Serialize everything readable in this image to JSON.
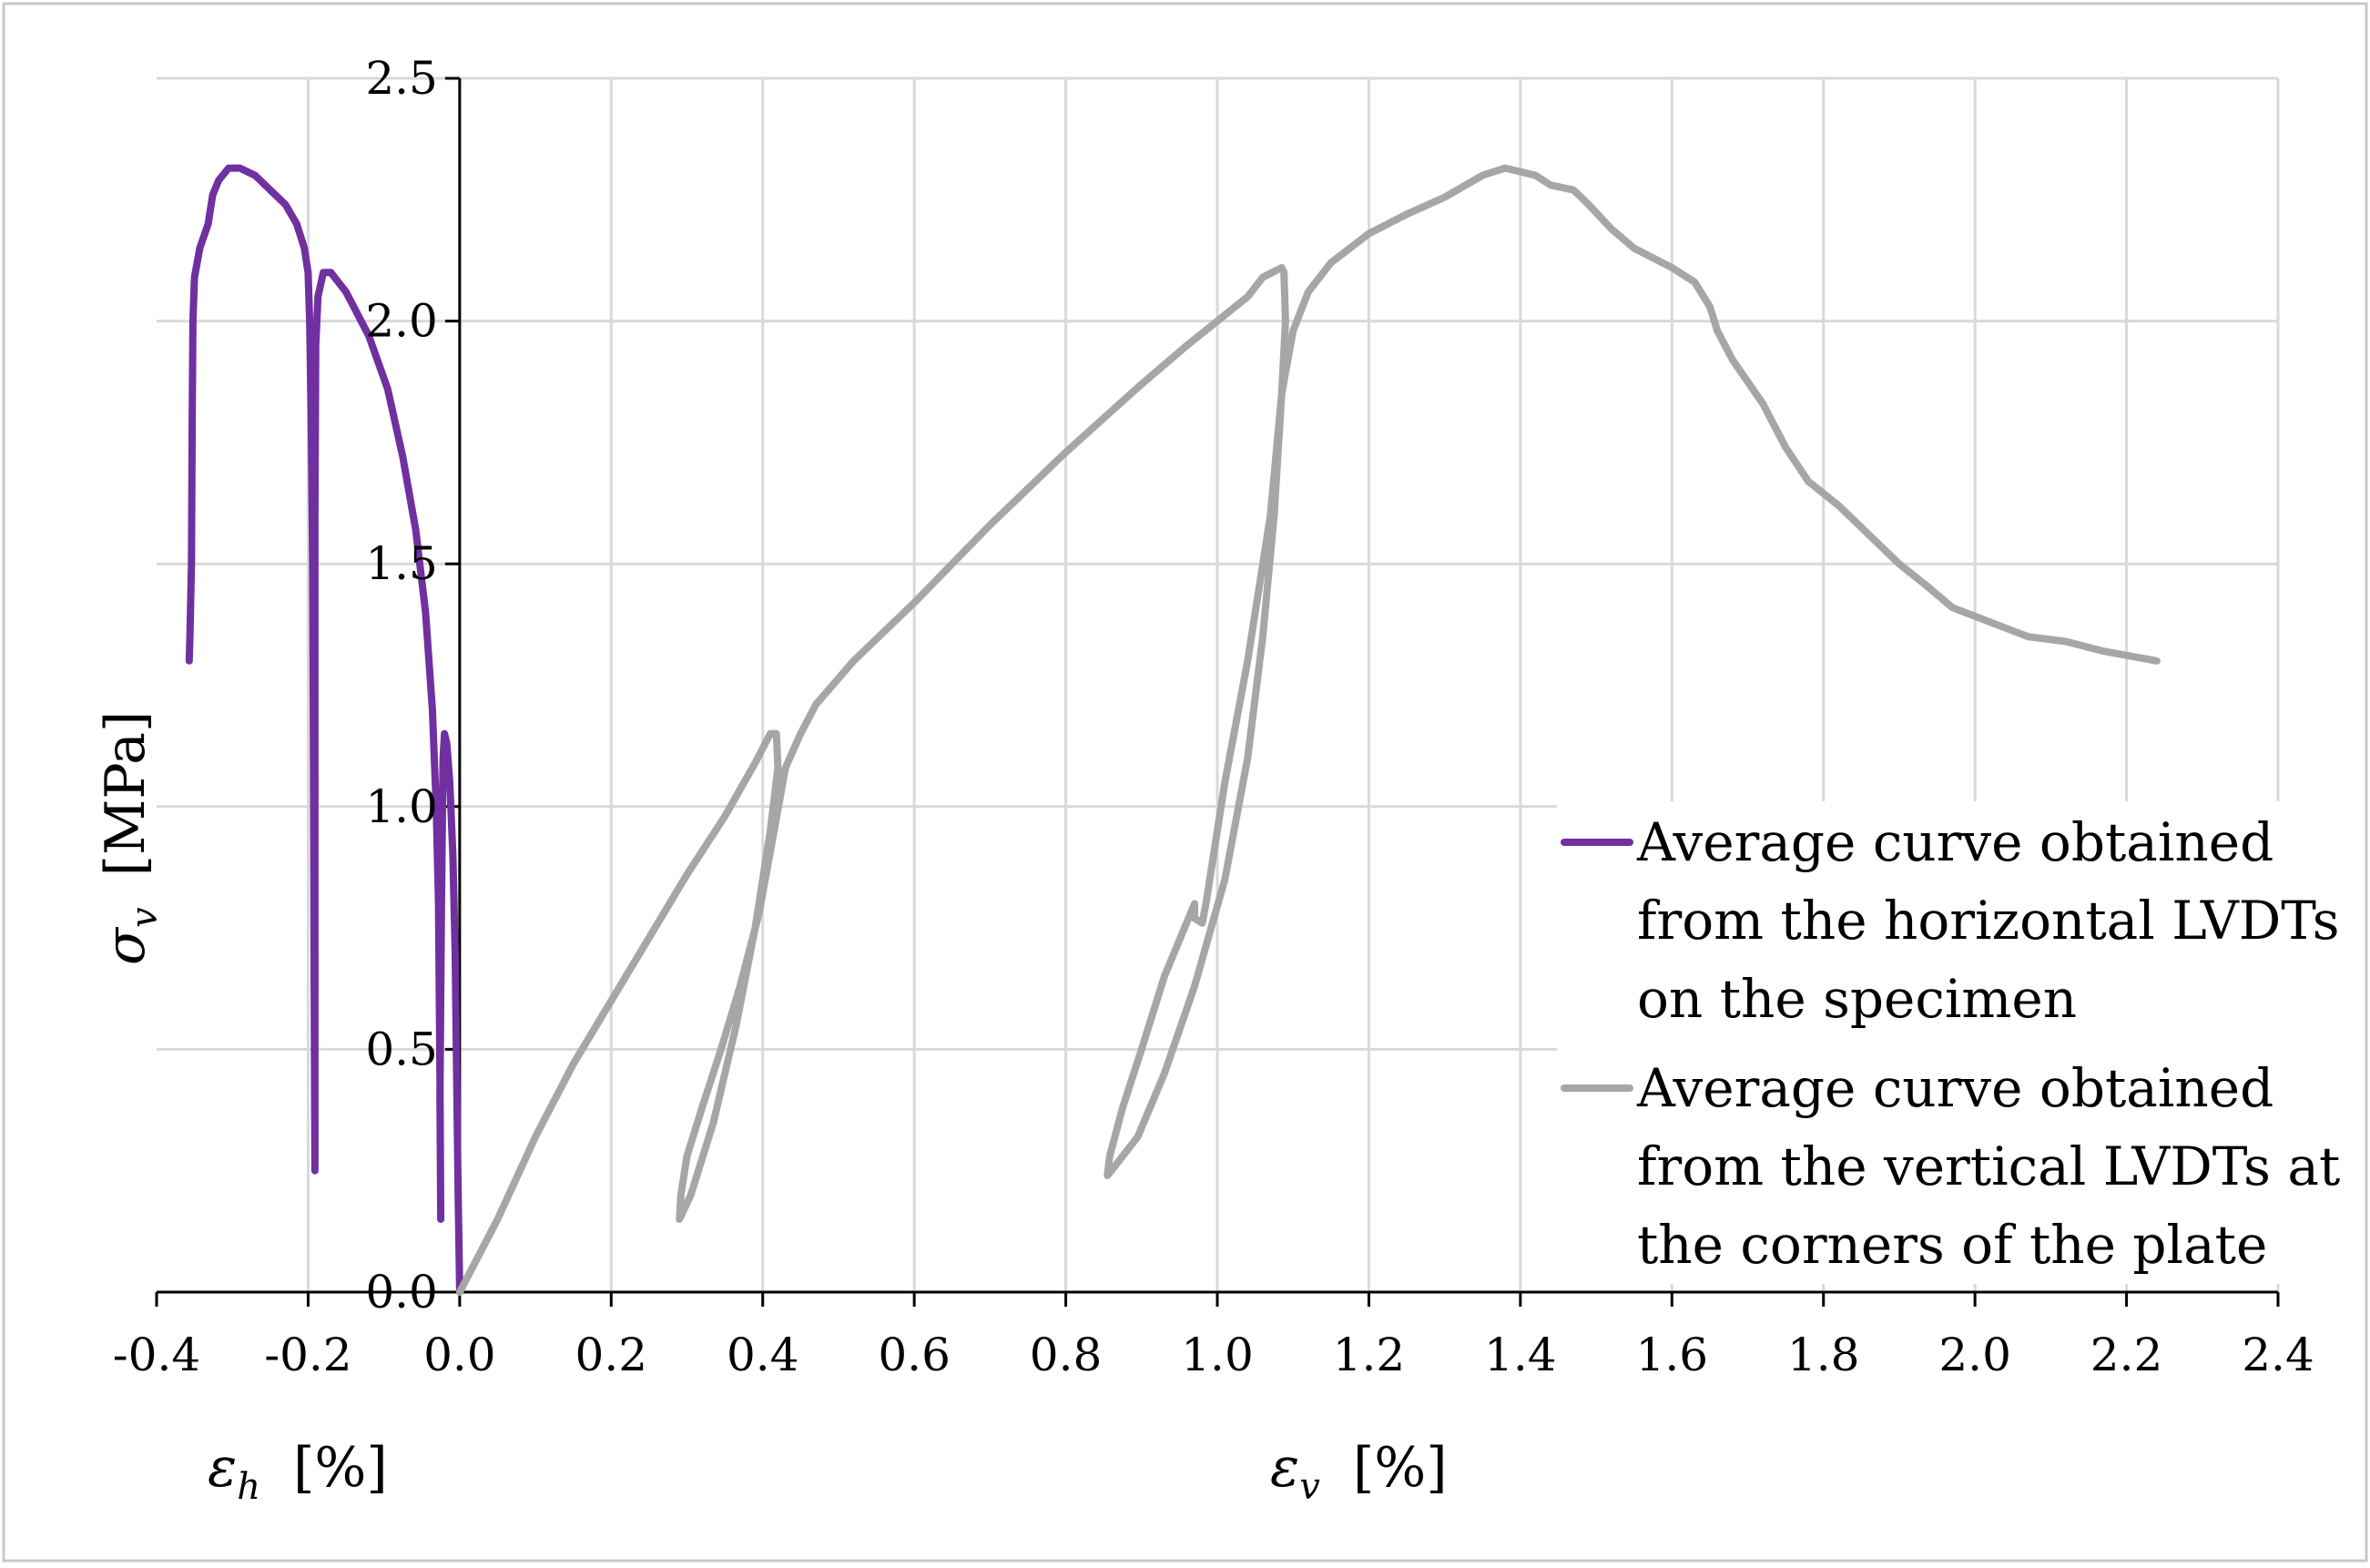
{
  "chart_data": {
    "type": "line",
    "title": "",
    "xlabel_h": {
      "symbol": "ε",
      "sub": "h",
      "unit": "[%]"
    },
    "xlabel_v": {
      "symbol": "ε",
      "sub": "v",
      "unit": "[%]"
    },
    "ylabel": {
      "symbol": "σ",
      "sub": "v",
      "unit": "[MPa]"
    },
    "xlim": [
      -0.4,
      2.4
    ],
    "ylim": [
      0,
      2.5
    ],
    "xticks": [
      -0.4,
      -0.2,
      0.0,
      0.2,
      0.4,
      0.6,
      0.8,
      1.0,
      1.2,
      1.4,
      1.6,
      1.8,
      2.0,
      2.2,
      2.4
    ],
    "xtick_labels": [
      "-0.4",
      "-0.2",
      "0.0",
      "0.2",
      "0.4",
      "0.6",
      "0.8",
      "1.0",
      "1.2",
      "1.4",
      "1.6",
      "1.8",
      "2.0",
      "2.2",
      "2.4"
    ],
    "yticks": [
      0,
      0.5,
      1.0,
      1.5,
      2.0,
      2.5
    ],
    "ytick_labels": [
      "0.0",
      "0.5",
      "1.0",
      "1.5",
      "2.0",
      "2.5"
    ],
    "grid": true,
    "legend_position": "bottom-right",
    "series": [
      {
        "name": "Average curve obtained from the horizontal LVDTs on the specimen",
        "legend_lines": [
          "Average curve obtained",
          "from the horizontal LVDTs",
          "on the specimen"
        ],
        "color": "#7030a0",
        "points": [
          [
            0.0,
            0.0
          ],
          [
            -0.002,
            0.2
          ],
          [
            -0.004,
            0.45
          ],
          [
            -0.006,
            0.7
          ],
          [
            -0.009,
            0.9
          ],
          [
            -0.013,
            1.05
          ],
          [
            -0.017,
            1.13
          ],
          [
            -0.02,
            1.15
          ],
          [
            -0.022,
            1.1
          ],
          [
            -0.024,
            0.8
          ],
          [
            -0.026,
            0.4
          ],
          [
            -0.025,
            0.15
          ],
          [
            -0.026,
            0.45
          ],
          [
            -0.028,
            0.8
          ],
          [
            -0.031,
            1.0
          ],
          [
            -0.036,
            1.2
          ],
          [
            -0.045,
            1.4
          ],
          [
            -0.058,
            1.57
          ],
          [
            -0.075,
            1.72
          ],
          [
            -0.095,
            1.86
          ],
          [
            -0.12,
            1.97
          ],
          [
            -0.15,
            2.06
          ],
          [
            -0.17,
            2.1
          ],
          [
            -0.18,
            2.1
          ],
          [
            -0.187,
            2.05
          ],
          [
            -0.19,
            1.95
          ],
          [
            -0.191,
            1.6
          ],
          [
            -0.191,
            1.1
          ],
          [
            -0.191,
            0.6
          ],
          [
            -0.191,
            0.25
          ],
          [
            -0.192,
            0.6
          ],
          [
            -0.193,
            1.1
          ],
          [
            -0.194,
            1.5
          ],
          [
            -0.196,
            1.8
          ],
          [
            -0.198,
            2.0
          ],
          [
            -0.2,
            2.1
          ],
          [
            -0.205,
            2.15
          ],
          [
            -0.215,
            2.2
          ],
          [
            -0.23,
            2.24
          ],
          [
            -0.25,
            2.27
          ],
          [
            -0.27,
            2.3
          ],
          [
            -0.29,
            2.315
          ],
          [
            -0.305,
            2.315
          ],
          [
            -0.318,
            2.29
          ],
          [
            -0.326,
            2.26
          ],
          [
            -0.332,
            2.2
          ],
          [
            -0.343,
            2.15
          ],
          [
            -0.35,
            2.09
          ],
          [
            -0.352,
            2.0
          ],
          [
            -0.353,
            1.8
          ],
          [
            -0.354,
            1.5
          ],
          [
            -0.356,
            1.35
          ],
          [
            -0.357,
            1.3
          ]
        ]
      },
      {
        "name": "Average curve obtained from the vertical LVDTs at the corners of the plate",
        "legend_lines": [
          "Average curve obtained",
          "from the vertical LVDTs at",
          "the corners of the plate"
        ],
        "color": "#a6a6a6",
        "points": [
          [
            0.0,
            0.0
          ],
          [
            0.05,
            0.15
          ],
          [
            0.1,
            0.32
          ],
          [
            0.15,
            0.47
          ],
          [
            0.2,
            0.6
          ],
          [
            0.25,
            0.73
          ],
          [
            0.3,
            0.86
          ],
          [
            0.35,
            0.98
          ],
          [
            0.39,
            1.09
          ],
          [
            0.41,
            1.15
          ],
          [
            0.418,
            1.15
          ],
          [
            0.42,
            1.08
          ],
          [
            0.41,
            0.95
          ],
          [
            0.39,
            0.75
          ],
          [
            0.365,
            0.55
          ],
          [
            0.335,
            0.35
          ],
          [
            0.305,
            0.2
          ],
          [
            0.293,
            0.16
          ],
          [
            0.29,
            0.15
          ],
          [
            0.292,
            0.2
          ],
          [
            0.3,
            0.28
          ],
          [
            0.32,
            0.38
          ],
          [
            0.345,
            0.5
          ],
          [
            0.37,
            0.63
          ],
          [
            0.395,
            0.78
          ],
          [
            0.415,
            0.95
          ],
          [
            0.43,
            1.08
          ],
          [
            0.45,
            1.15
          ],
          [
            0.47,
            1.21
          ],
          [
            0.52,
            1.3
          ],
          [
            0.6,
            1.42
          ],
          [
            0.7,
            1.58
          ],
          [
            0.8,
            1.73
          ],
          [
            0.9,
            1.87
          ],
          [
            0.96,
            1.95
          ],
          [
            1.0,
            2.0
          ],
          [
            1.04,
            2.05
          ],
          [
            1.06,
            2.09
          ],
          [
            1.085,
            2.11
          ],
          [
            1.088,
            2.1
          ],
          [
            1.09,
            2.0
          ],
          [
            1.085,
            1.85
          ],
          [
            1.075,
            1.6
          ],
          [
            1.06,
            1.35
          ],
          [
            1.04,
            1.1
          ],
          [
            1.01,
            0.85
          ],
          [
            0.97,
            0.63
          ],
          [
            0.93,
            0.45
          ],
          [
            0.895,
            0.32
          ],
          [
            0.865,
            0.26
          ],
          [
            0.855,
            0.24
          ],
          [
            0.858,
            0.28
          ],
          [
            0.875,
            0.38
          ],
          [
            0.9,
            0.5
          ],
          [
            0.93,
            0.65
          ],
          [
            0.97,
            0.8
          ],
          [
            0.97,
            0.77
          ],
          [
            0.98,
            0.76
          ],
          [
            0.985,
            0.8
          ],
          [
            1.01,
            1.05
          ],
          [
            1.04,
            1.3
          ],
          [
            1.07,
            1.6
          ],
          [
            1.085,
            1.85
          ],
          [
            1.1,
            1.98
          ],
          [
            1.12,
            2.06
          ],
          [
            1.15,
            2.12
          ],
          [
            1.2,
            2.18
          ],
          [
            1.25,
            2.22
          ],
          [
            1.3,
            2.255
          ],
          [
            1.35,
            2.3
          ],
          [
            1.38,
            2.315
          ],
          [
            1.42,
            2.3
          ],
          [
            1.44,
            2.28
          ],
          [
            1.47,
            2.27
          ],
          [
            1.49,
            2.24
          ],
          [
            1.52,
            2.19
          ],
          [
            1.55,
            2.15
          ],
          [
            1.6,
            2.11
          ],
          [
            1.63,
            2.08
          ],
          [
            1.65,
            2.03
          ],
          [
            1.66,
            1.98
          ],
          [
            1.68,
            1.92
          ],
          [
            1.72,
            1.83
          ],
          [
            1.75,
            1.74
          ],
          [
            1.78,
            1.67
          ],
          [
            1.82,
            1.62
          ],
          [
            1.86,
            1.56
          ],
          [
            1.9,
            1.5
          ],
          [
            1.94,
            1.45
          ],
          [
            1.97,
            1.41
          ],
          [
            2.02,
            1.38
          ],
          [
            2.07,
            1.35
          ],
          [
            2.12,
            1.34
          ],
          [
            2.17,
            1.32
          ],
          [
            2.24,
            1.3
          ]
        ]
      }
    ]
  }
}
